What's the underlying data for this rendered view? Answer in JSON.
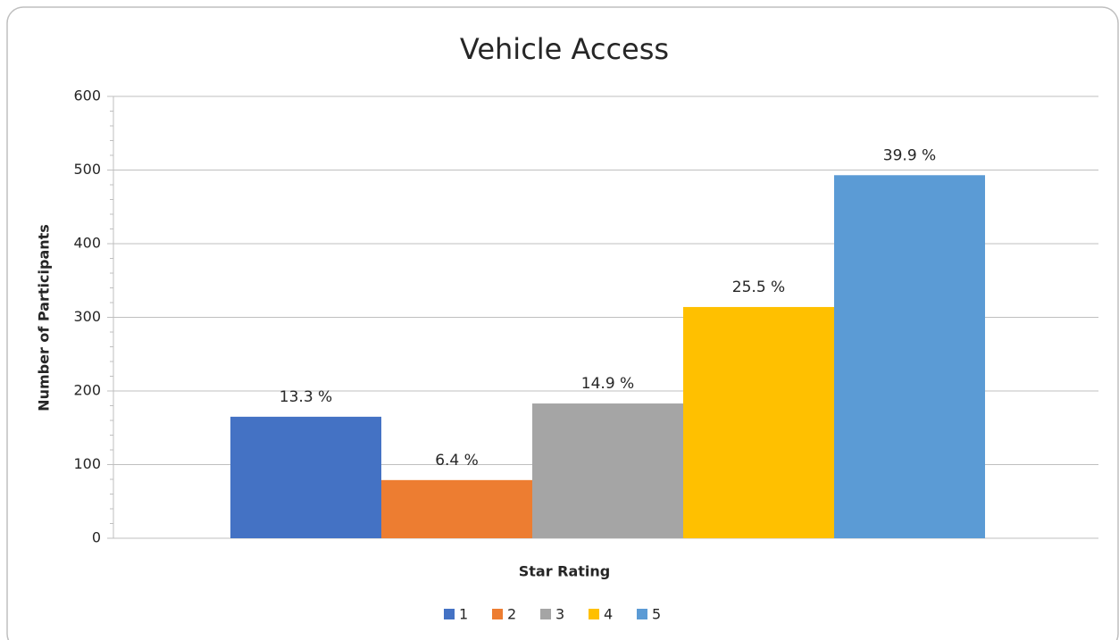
{
  "chart_data": {
    "type": "bar",
    "title": "Vehicle Access",
    "xlabel": "Star Rating",
    "ylabel": "Number of Participants",
    "ylim": [
      0,
      600
    ],
    "yticks": [
      0,
      100,
      200,
      300,
      400,
      500,
      600
    ],
    "grid": true,
    "minor_ticks": true,
    "legend": "bottom",
    "series": [
      {
        "name": "1",
        "color": "#4472c4",
        "values": [
          165
        ],
        "annotation": "13.3 %"
      },
      {
        "name": "2",
        "color": "#ed7d31",
        "values": [
          79
        ],
        "annotation": "6.4 %"
      },
      {
        "name": "3",
        "color": "#a5a5a5",
        "values": [
          183
        ],
        "annotation": "14.9 %"
      },
      {
        "name": "4",
        "color": "#ffc000",
        "values": [
          314
        ],
        "annotation": "25.5 %"
      },
      {
        "name": "5",
        "color": "#5b9bd5",
        "values": [
          493
        ],
        "annotation": "39.9 %"
      }
    ]
  }
}
